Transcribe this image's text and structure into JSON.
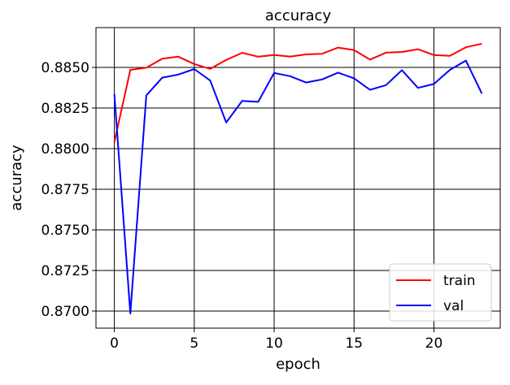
{
  "chart_data": {
    "type": "line",
    "title": "accuracy",
    "xlabel": "epoch",
    "ylabel": "accuracy",
    "xlim": [
      -1.15,
      24.15
    ],
    "ylim": [
      0.86895,
      0.88745
    ],
    "grid": true,
    "legend_position": "bottom-right",
    "x_ticks": [
      0,
      5,
      10,
      15,
      20
    ],
    "x_tick_labels": [
      "0",
      "5",
      "10",
      "15",
      "20"
    ],
    "y_ticks": [
      0.87,
      0.8725,
      0.875,
      0.8775,
      0.88,
      0.8825,
      0.885
    ],
    "y_tick_labels": [
      "0.8700",
      "0.8725",
      "0.8750",
      "0.8775",
      "0.8800",
      "0.8825",
      "0.8850"
    ],
    "x": [
      0,
      1,
      2,
      3,
      4,
      5,
      6,
      7,
      8,
      9,
      10,
      11,
      12,
      13,
      14,
      15,
      16,
      17,
      18,
      19,
      20,
      21,
      22,
      23
    ],
    "series": [
      {
        "name": "train",
        "color": "#ff0000",
        "values": [
          0.8804,
          0.88485,
          0.88498,
          0.88554,
          0.88566,
          0.88521,
          0.88491,
          0.88546,
          0.8859,
          0.88566,
          0.88576,
          0.88567,
          0.8858,
          0.88584,
          0.88622,
          0.88607,
          0.88548,
          0.88591,
          0.88595,
          0.88612,
          0.88576,
          0.88571,
          0.88624,
          0.88646
        ]
      },
      {
        "name": "val",
        "color": "#0000ff",
        "values": [
          0.88335,
          0.86985,
          0.88328,
          0.88437,
          0.88456,
          0.8849,
          0.88419,
          0.88161,
          0.88294,
          0.88288,
          0.88466,
          0.88446,
          0.88407,
          0.88426,
          0.88468,
          0.88433,
          0.88362,
          0.88391,
          0.88483,
          0.88374,
          0.88398,
          0.88485,
          0.88542,
          0.88339
        ]
      }
    ]
  }
}
